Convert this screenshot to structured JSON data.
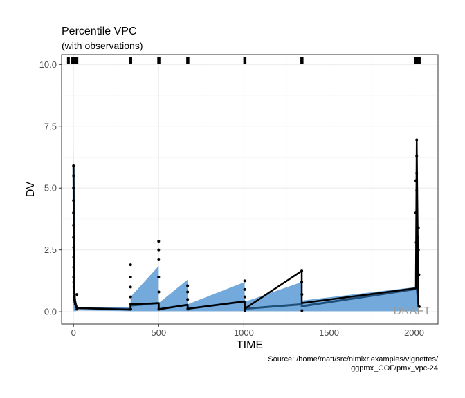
{
  "chart_data": {
    "type": "line",
    "title": "Percentile VPC",
    "subtitle": "(with observations)",
    "xlabel": "TIME",
    "ylabel": "DV",
    "xlim": [
      -70,
      2140
    ],
    "ylim": [
      -0.5,
      10.4
    ],
    "x_ticks": [
      0,
      500,
      1000,
      1500,
      2000
    ],
    "x_tick_labels": [
      "0",
      "500",
      "1000",
      "1500",
      "2000"
    ],
    "y_ticks": [
      0,
      2.5,
      5,
      7.5,
      10
    ],
    "y_tick_labels": [
      "0.0",
      "2.5",
      "5.0",
      "7.5",
      "10.0"
    ],
    "grid": true,
    "watermark": "DRAFT",
    "caption": [
      "Source: /home/matt/src/nlmixr.examples/vignettes/",
      "ggpmx_GOF/pmx_vpc-24"
    ],
    "colors": {
      "band": "#5b9bd5",
      "sim_median": "#1f4e79",
      "obs_median": "#000000",
      "points": "#000000",
      "rug": "#000000"
    },
    "rug_x": [
      -30,
      -5,
      5,
      10,
      15,
      20,
      335,
      336,
      500,
      502,
      670,
      672,
      1005,
      1007,
      1340,
      1342,
      2010,
      2015,
      2020,
      2025,
      2030
    ],
    "series": [
      {
        "role": "simulated-interval",
        "x": [
          0,
          0,
          2,
          5,
          10,
          20,
          335,
          335,
          500,
          500,
          670,
          670,
          1005,
          1005,
          1340,
          1340,
          2010,
          2015,
          2025
        ],
        "lower": [
          0,
          0,
          0.05,
          0.02,
          0.01,
          0.05,
          0.02,
          0.02,
          0.02,
          0.02,
          0.02,
          0.02,
          0.02,
          0.02,
          0.02,
          0.02,
          0.02,
          0.02,
          0
        ],
        "upper": [
          0,
          6.6,
          4.5,
          1.5,
          0.7,
          0.2,
          0.2,
          0.6,
          1.85,
          0.35,
          1.3,
          0.3,
          1.2,
          0.4,
          1.2,
          0.45,
          1.0,
          1.9,
          0.5
        ]
      },
      {
        "role": "simulated-median",
        "x": [
          0,
          2,
          5,
          10,
          20,
          335,
          335,
          500,
          500,
          670,
          670,
          1005,
          1005,
          1340,
          1340,
          2010,
          2015,
          2025
        ],
        "y": [
          5.9,
          3.0,
          0.8,
          0.4,
          0.15,
          0.1,
          0.25,
          0.35,
          0.1,
          0.28,
          0.12,
          0.42,
          0.12,
          0.3,
          0.22,
          0.92,
          1.0,
          0.3
        ]
      },
      {
        "role": "observed-median",
        "x": [
          0,
          2,
          5,
          10,
          20,
          335,
          335,
          500,
          500,
          670,
          670,
          1005,
          1005,
          1340,
          1340,
          2010,
          2015,
          2025
        ],
        "y": [
          5.95,
          2.5,
          0.6,
          0.3,
          0.15,
          0.08,
          0.3,
          0.35,
          0.1,
          0.28,
          0.12,
          0.42,
          0.12,
          1.65,
          0.35,
          0.95,
          6.9,
          0.2
        ]
      },
      {
        "role": "observations",
        "x": [
          0,
          0,
          0,
          0,
          0,
          0,
          0,
          1,
          1,
          1,
          1,
          2,
          2,
          3,
          4,
          5,
          8,
          10,
          15,
          20,
          20,
          335,
          335,
          335,
          335,
          336,
          336,
          500,
          500,
          500,
          500,
          501,
          501,
          670,
          670,
          670,
          671,
          1005,
          1005,
          1006,
          1006,
          1340,
          1340,
          1341,
          1341,
          2010,
          2010,
          2012,
          2015,
          2015,
          2015,
          2015,
          2020,
          2020,
          2025,
          2025,
          2028,
          2030
        ],
        "y": [
          5.9,
          5.5,
          5.0,
          4.5,
          4.0,
          3.5,
          3.0,
          2.6,
          2.2,
          1.8,
          1.4,
          1.2,
          1.0,
          0.8,
          0.6,
          0.5,
          0.4,
          0.3,
          0.2,
          0.7,
          0.1,
          1.9,
          1.4,
          1.0,
          0.6,
          0.3,
          0.1,
          2.85,
          2.5,
          2.1,
          1.4,
          0.8,
          0.1,
          1.05,
          0.8,
          0.5,
          0.1,
          1.25,
          0.9,
          0.6,
          0.05,
          1.65,
          1.2,
          0.7,
          0.05,
          5.3,
          4.0,
          2.8,
          6.95,
          6.3,
          5.6,
          4.9,
          3.0,
          2.0,
          3.4,
          2.5,
          1.5,
          0.2
        ]
      }
    ]
  }
}
